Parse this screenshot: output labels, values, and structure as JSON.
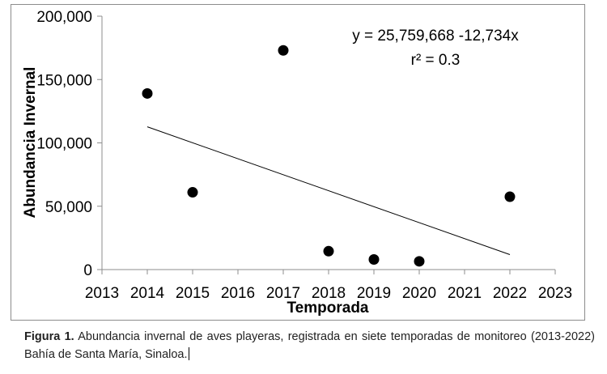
{
  "chart_data": {
    "type": "scatter",
    "title": "",
    "xlabel": "Temporada",
    "ylabel": "Abundancia Invernal",
    "xlim": [
      2013,
      2023
    ],
    "ylim": [
      0,
      200000
    ],
    "x_ticks": [
      2013,
      2014,
      2015,
      2016,
      2017,
      2018,
      2019,
      2020,
      2021,
      2022,
      2023
    ],
    "x_tick_labels": [
      "2013",
      "2014",
      "2015",
      "2016",
      "2017",
      "2018",
      "2019",
      "2020",
      "2021",
      "2022",
      "2023"
    ],
    "y_ticks": [
      0,
      50000,
      100000,
      150000,
      200000
    ],
    "y_tick_labels": [
      "0",
      "50,000",
      "100,000",
      "150,000",
      "200,000"
    ],
    "grid": false,
    "series": [
      {
        "x": [
          2014,
          2015,
          2017,
          2018,
          2019,
          2020,
          2022
        ],
        "y": [
          139000,
          61000,
          173000,
          14500,
          8000,
          6500,
          57500
        ],
        "color": "#000000"
      }
    ],
    "trendline": {
      "x": [
        2014,
        2022
      ],
      "y": [
        112700,
        11800
      ],
      "color": "#000000"
    },
    "annotations": {
      "equation": "y = 25,759,668 -12,734x",
      "r_squared": "r² = 0.3"
    }
  },
  "caption": {
    "label": "Figura 1.",
    "text": " Abundancia invernal de aves playeras, registrada en siete temporadas de monitoreo (2013-2022) Bahía de Santa María, Sinaloa."
  }
}
